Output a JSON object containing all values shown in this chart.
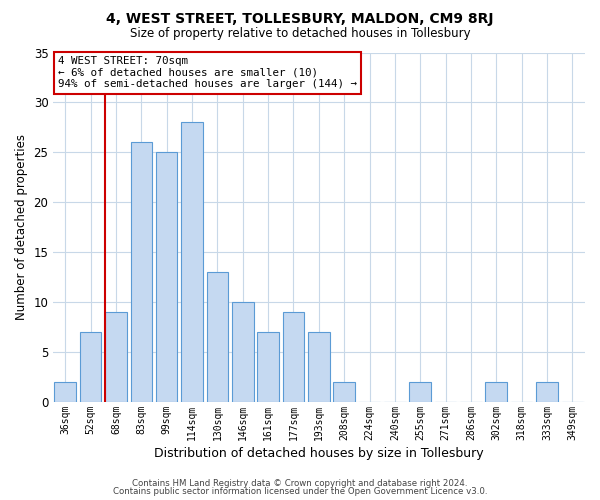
{
  "title": "4, WEST STREET, TOLLESBURY, MALDON, CM9 8RJ",
  "subtitle": "Size of property relative to detached houses in Tollesbury",
  "xlabel": "Distribution of detached houses by size in Tollesbury",
  "ylabel": "Number of detached properties",
  "footer_line1": "Contains HM Land Registry data © Crown copyright and database right 2024.",
  "footer_line2": "Contains public sector information licensed under the Open Government Licence v3.0.",
  "bar_labels": [
    "36sqm",
    "52sqm",
    "68sqm",
    "83sqm",
    "99sqm",
    "114sqm",
    "130sqm",
    "146sqm",
    "161sqm",
    "177sqm",
    "193sqm",
    "208sqm",
    "224sqm",
    "240sqm",
    "255sqm",
    "271sqm",
    "286sqm",
    "302sqm",
    "318sqm",
    "333sqm",
    "349sqm"
  ],
  "bar_values": [
    2,
    7,
    9,
    26,
    25,
    28,
    13,
    10,
    7,
    9,
    7,
    2,
    0,
    0,
    2,
    0,
    0,
    2,
    0,
    2,
    0
  ],
  "bar_color": "#c5d9f1",
  "bar_edge_color": "#5b9bd5",
  "red_line_bar_index": 2,
  "annotation_title": "4 WEST STREET: 70sqm",
  "annotation_line1": "← 6% of detached houses are smaller (10)",
  "annotation_line2": "94% of semi-detached houses are larger (144) →",
  "annotation_box_color": "#ffffff",
  "annotation_box_edge": "#cc0000",
  "red_line_color": "#cc0000",
  "ylim": [
    0,
    35
  ],
  "yticks": [
    0,
    5,
    10,
    15,
    20,
    25,
    30,
    35
  ],
  "background_color": "#ffffff",
  "grid_color": "#c8d8e8"
}
